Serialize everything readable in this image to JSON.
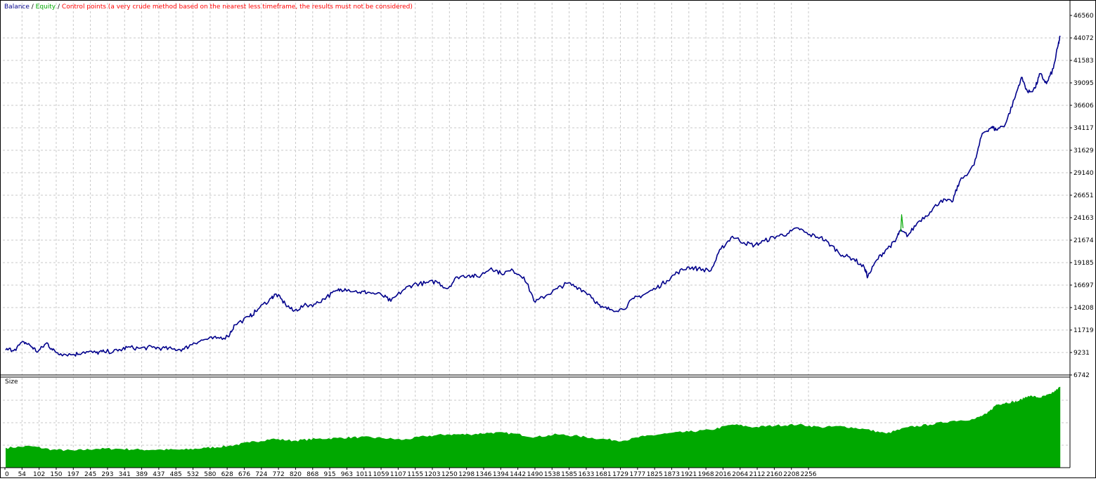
{
  "legend": {
    "balance_label": "Balance",
    "sep1": " / ",
    "equity_label": "Equity",
    "sep2": " / ",
    "control_label": "Control points (a very crude method based on the nearest less timeframe, the results must not be considered)"
  },
  "colors": {
    "balance": "#00008b",
    "equity": "#00a800",
    "control": "#ff0000",
    "grid": "#c8c8c8",
    "volume_fill": "#00a800",
    "axis": "#000000"
  },
  "chart_data": [
    {
      "type": "line",
      "title": "",
      "grid": true,
      "ylim": [
        6742,
        46560
      ],
      "y_ticks": [
        "46560",
        "44072",
        "41583",
        "39095",
        "36606",
        "34117",
        "31629",
        "29140",
        "26651",
        "24163",
        "21674",
        "19185",
        "16697",
        "14208",
        "11719",
        "9231",
        "6742"
      ],
      "xlim": [
        0,
        2315
      ],
      "x_ticks": [
        "0",
        "54",
        "102",
        "150",
        "197",
        "245",
        "293",
        "341",
        "389",
        "437",
        "485",
        "532",
        "580",
        "628",
        "676",
        "724",
        "772",
        "820",
        "868",
        "915",
        "963",
        "1011",
        "1059",
        "1107",
        "1155",
        "1203",
        "1250",
        "1298",
        "1346",
        "1394",
        "1442",
        "1490",
        "1538",
        "1585",
        "1633",
        "1681",
        "1729",
        "1777",
        "1825",
        "1873",
        "1921",
        "1968",
        "2016",
        "2064",
        "2112",
        "2160",
        "2208",
        "2256"
      ],
      "series": [
        {
          "name": "Balance",
          "color": "#00008b",
          "x": [
            0,
            20,
            40,
            54,
            70,
            90,
            102,
            120,
            150,
            170,
            197,
            215,
            245,
            265,
            293,
            320,
            341,
            365,
            389,
            410,
            437,
            460,
            485,
            500,
            532,
            550,
            580,
            590,
            610,
            628,
            650,
            676,
            700,
            724,
            740,
            772,
            790,
            820,
            840,
            868,
            890,
            915,
            940,
            963,
            985,
            1011,
            1030,
            1059,
            1080,
            1107,
            1130,
            1155,
            1180,
            1203,
            1225,
            1250,
            1275,
            1298,
            1320,
            1346,
            1370,
            1394,
            1420,
            1442,
            1465,
            1490,
            1510,
            1538,
            1560,
            1585,
            1610,
            1633,
            1655,
            1681,
            1705,
            1729,
            1750,
            1777,
            1800,
            1825,
            1850,
            1873,
            1880,
            1900,
            1921,
            1940,
            1950,
            1968,
            1990,
            2016,
            2040,
            2064,
            2080,
            2112,
            2130,
            2150,
            2160,
            2180,
            2200,
            2215,
            2230,
            2245,
            2256,
            2270,
            2285,
            2295,
            2300
          ],
          "y": [
            9500,
            9600,
            10400,
            10000,
            9300,
            10300,
            9500,
            9100,
            9000,
            9300,
            9200,
            9300,
            9400,
            9800,
            9700,
            9800,
            9700,
            9600,
            9600,
            10300,
            10700,
            10800,
            11000,
            12300,
            13200,
            14000,
            15300,
            15700,
            14600,
            13800,
            14400,
            14600,
            15400,
            16100,
            16300,
            15900,
            15900,
            15600,
            14900,
            16200,
            16800,
            16900,
            17100,
            16300,
            17600,
            17800,
            17600,
            18600,
            18000,
            18300,
            17600,
            14800,
            15600,
            16300,
            16900,
            16400,
            15600,
            14200,
            14000,
            14000,
            15200,
            15700,
            16400,
            17200,
            18100,
            18700,
            18500,
            18300,
            20700,
            22100,
            21400,
            21100,
            21600,
            22100,
            22400,
            23000,
            22300,
            22000,
            21100,
            20000,
            19600,
            18600,
            17600,
            19500,
            20700,
            21500,
            22700,
            22200,
            23700,
            24800,
            26100,
            25900,
            28100,
            30000,
            33500,
            34200,
            33900,
            34500,
            37300,
            39700,
            38000,
            38500,
            40100,
            39000,
            40700,
            43200,
            44300
          ]
        },
        {
          "name": "Equity",
          "color": "#00a800",
          "x": [
            1952,
            1954,
            1957
          ],
          "y": [
            22600,
            24500,
            23000
          ]
        }
      ]
    },
    {
      "type": "area",
      "title": "Size",
      "grid": true,
      "series": [
        {
          "name": "Size",
          "color": "#00a800",
          "x": [
            0,
            54,
            102,
            150,
            197,
            245,
            293,
            341,
            389,
            437,
            485,
            532,
            580,
            628,
            676,
            724,
            772,
            820,
            868,
            915,
            963,
            1011,
            1059,
            1107,
            1155,
            1203,
            1250,
            1298,
            1346,
            1394,
            1442,
            1490,
            1538,
            1585,
            1633,
            1681,
            1729,
            1777,
            1825,
            1873,
            1921,
            1968,
            2016,
            2064,
            2112,
            2140,
            2160,
            2180,
            2208,
            2230,
            2256,
            2280,
            2300
          ],
          "y": [
            0.22,
            0.24,
            0.2,
            0.19,
            0.21,
            0.21,
            0.2,
            0.2,
            0.2,
            0.22,
            0.24,
            0.28,
            0.32,
            0.3,
            0.32,
            0.33,
            0.34,
            0.33,
            0.31,
            0.35,
            0.37,
            0.37,
            0.39,
            0.38,
            0.34,
            0.37,
            0.35,
            0.32,
            0.3,
            0.35,
            0.38,
            0.4,
            0.42,
            0.48,
            0.45,
            0.47,
            0.48,
            0.45,
            0.46,
            0.43,
            0.38,
            0.45,
            0.48,
            0.52,
            0.54,
            0.6,
            0.7,
            0.72,
            0.74,
            0.8,
            0.78,
            0.82,
            0.9
          ]
        }
      ]
    }
  ]
}
